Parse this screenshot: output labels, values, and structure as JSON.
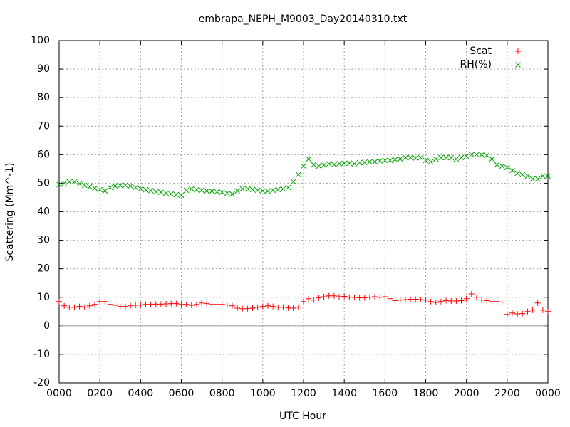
{
  "chart_data": {
    "type": "scatter",
    "title": "embrapa_NEPH_M9003_Day20140310.txt",
    "xlabel": "UTC Hour",
    "ylabel": "Scattering (Mm^-1)",
    "xlim": [
      0,
      24
    ],
    "xticks": [
      {
        "value": 0,
        "label": "0000"
      },
      {
        "value": 2,
        "label": "0200"
      },
      {
        "value": 4,
        "label": "0400"
      },
      {
        "value": 6,
        "label": "0600"
      },
      {
        "value": 8,
        "label": "0800"
      },
      {
        "value": 10,
        "label": "1000"
      },
      {
        "value": 12,
        "label": "1200"
      },
      {
        "value": 14,
        "label": "1400"
      },
      {
        "value": 16,
        "label": "1600"
      },
      {
        "value": 18,
        "label": "1800"
      },
      {
        "value": 20,
        "label": "2000"
      },
      {
        "value": 22,
        "label": "2200"
      },
      {
        "value": 24,
        "label": "0000"
      }
    ],
    "ylim": [
      -20,
      100
    ],
    "yticks": [
      -20,
      -10,
      0,
      10,
      20,
      30,
      40,
      50,
      60,
      70,
      80,
      90,
      100
    ],
    "grid": true,
    "zeroaxis": true,
    "legend": "top-right",
    "x": [
      0,
      0.25,
      0.5,
      0.75,
      1,
      1.25,
      1.5,
      1.75,
      2,
      2.25,
      2.5,
      2.75,
      3,
      3.25,
      3.5,
      3.75,
      4,
      4.25,
      4.5,
      4.75,
      5,
      5.25,
      5.5,
      5.75,
      6,
      6.25,
      6.5,
      6.75,
      7,
      7.25,
      7.5,
      7.75,
      8,
      8.25,
      8.5,
      8.75,
      9,
      9.25,
      9.5,
      9.75,
      10,
      10.25,
      10.5,
      10.75,
      11,
      11.25,
      11.5,
      11.75,
      12,
      12.25,
      12.5,
      12.75,
      13,
      13.25,
      13.5,
      13.75,
      14,
      14.25,
      14.5,
      14.75,
      15,
      15.25,
      15.5,
      15.75,
      16,
      16.25,
      16.5,
      16.75,
      17,
      17.25,
      17.5,
      17.75,
      18,
      18.25,
      18.5,
      18.75,
      19,
      19.25,
      19.5,
      19.75,
      20,
      20.25,
      20.5,
      20.75,
      21,
      21.25,
      21.5,
      21.75,
      22,
      22.25,
      22.5,
      22.75,
      23,
      23.25,
      23.5,
      23.75,
      24
    ],
    "series": [
      {
        "name": "Scat",
        "color": "#ff0000",
        "marker": "plus",
        "values": [
          8.5,
          7,
          6.5,
          6.5,
          6.8,
          6.5,
          7,
          7.5,
          8.5,
          8.5,
          7.5,
          7.2,
          6.8,
          6.8,
          7,
          7.2,
          7.3,
          7.5,
          7.5,
          7.6,
          7.6,
          7.7,
          7.8,
          7.8,
          7.5,
          7.5,
          7.2,
          7.5,
          8,
          7.8,
          7.5,
          7.5,
          7.5,
          7.3,
          7,
          6.2,
          6,
          6,
          6.2,
          6.5,
          6.8,
          7,
          6.8,
          6.5,
          6.5,
          6.3,
          6.2,
          6.5,
          8.5,
          9.5,
          9,
          9.8,
          10.2,
          10.5,
          10.5,
          10.2,
          10.3,
          10,
          10,
          9.8,
          9.8,
          10,
          10.2,
          10,
          10.2,
          9.5,
          8.8,
          9,
          9.2,
          9.3,
          9.3,
          9.2,
          9,
          8.5,
          8.2,
          8.5,
          8.8,
          8.7,
          8.7,
          8.8,
          9.5,
          11.2,
          10,
          9,
          8.8,
          8.5,
          8.5,
          8.3,
          4,
          4.5,
          4.2,
          4.3,
          5,
          5.5,
          8,
          5.5,
          5
        ]
      },
      {
        "name": "RH(%)",
        "color": "#00a000",
        "marker": "cross",
        "values": [
          49.5,
          50,
          50.5,
          50.5,
          49.8,
          49.3,
          48.7,
          48.2,
          47.7,
          47.3,
          48.5,
          49,
          49.2,
          49.3,
          49,
          48.5,
          48,
          47.7,
          47.4,
          47,
          46.8,
          46.5,
          46.2,
          46,
          45.8,
          47.5,
          48,
          47.7,
          47.5,
          47.3,
          47.2,
          47,
          46.8,
          46.5,
          46.2,
          47.3,
          48,
          48,
          47.8,
          47.5,
          47.3,
          47.2,
          47.5,
          47.8,
          48,
          48.5,
          50.5,
          53,
          56,
          58.5,
          56.5,
          56,
          56.3,
          56.8,
          56.5,
          56.8,
          57,
          57,
          56.8,
          57.2,
          57.3,
          57.5,
          57.5,
          57.8,
          58,
          58,
          58.3,
          58.5,
          59,
          59,
          58.8,
          59,
          58,
          57.5,
          58.5,
          59,
          59,
          59,
          58.5,
          59,
          59.5,
          60,
          60,
          60,
          59.8,
          58.5,
          56.5,
          56,
          55.5,
          54.5,
          53.5,
          53,
          52.5,
          51.5,
          51.5,
          52.5,
          52.5
        ]
      }
    ]
  }
}
